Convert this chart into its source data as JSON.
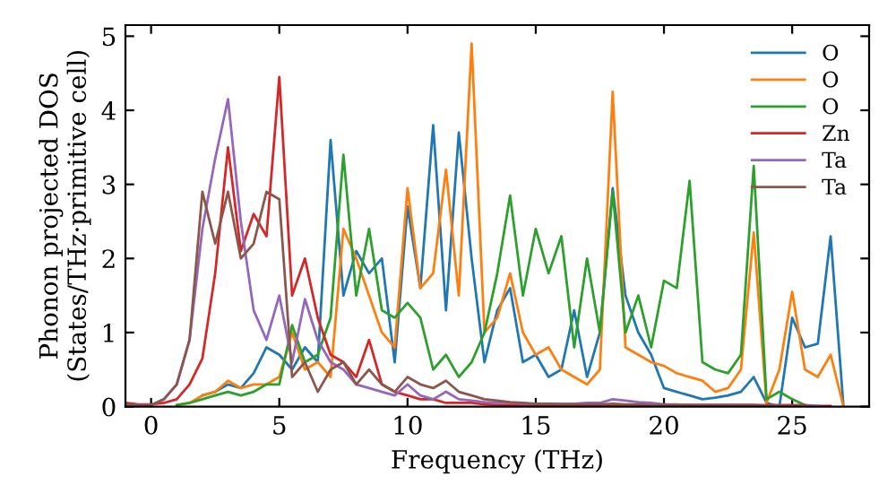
{
  "chart_data": {
    "type": "line",
    "xlabel": "Frequency (THz)",
    "ylabel": "Phonon projected DOS\n(States/THz·primitive cell)",
    "x": [
      -1,
      -0.5,
      0,
      0.5,
      1,
      1.5,
      2,
      2.5,
      3,
      3.5,
      4,
      4.5,
      5,
      5.5,
      6,
      6.5,
      7,
      7.5,
      8,
      8.5,
      9,
      9.5,
      10,
      10.5,
      11,
      11.5,
      12,
      12.5,
      13,
      13.5,
      14,
      14.5,
      15,
      15.5,
      16,
      16.5,
      17,
      17.5,
      18,
      18.5,
      19,
      19.5,
      20,
      20.5,
      21,
      21.5,
      22,
      22.5,
      23,
      23.5,
      24,
      24.5,
      25,
      25.5,
      26,
      26.5,
      27
    ],
    "series": [
      {
        "name": "O",
        "color": "#1f77b4",
        "values": [
          null,
          null,
          null,
          null,
          null,
          null,
          0.15,
          0.2,
          0.3,
          0.25,
          0.45,
          0.8,
          0.7,
          0.5,
          0.8,
          0.6,
          3.6,
          1.5,
          2.1,
          1.8,
          2.0,
          0.6,
          2.7,
          1.6,
          3.8,
          1.3,
          3.7,
          2.0,
          0.6,
          1.3,
          1.6,
          0.6,
          0.7,
          0.4,
          0.5,
          1.3,
          0.4,
          1.0,
          2.95,
          1.5,
          1.0,
          0.7,
          0.25,
          0.2,
          0.15,
          0.1,
          0.12,
          0.15,
          0.2,
          0.4,
          0.05,
          0,
          1.2,
          0.8,
          0.85,
          2.3,
          0
        ]
      },
      {
        "name": "O",
        "color": "#ff7f0e",
        "values": [
          null,
          null,
          null,
          null,
          0.02,
          0.05,
          0.15,
          0.2,
          0.35,
          0.25,
          0.3,
          0.3,
          0.4,
          1.0,
          0.5,
          0.6,
          0.4,
          2.4,
          2.0,
          1.5,
          1.0,
          0.8,
          2.95,
          1.6,
          1.8,
          3.2,
          1.5,
          4.9,
          1.0,
          1.2,
          1.8,
          1.0,
          0.7,
          0.8,
          0.5,
          0.4,
          0.3,
          0.5,
          4.25,
          0.8,
          0.7,
          0.6,
          0.55,
          0.45,
          0.4,
          0.35,
          0.2,
          0.25,
          0.5,
          2.35,
          0.05,
          0.5,
          1.55,
          0.5,
          0.4,
          0.7,
          0
        ]
      },
      {
        "name": "O",
        "color": "#2ca02c",
        "values": [
          null,
          null,
          null,
          null,
          0.02,
          0.05,
          0.1,
          0.15,
          0.2,
          0.15,
          0.2,
          0.3,
          0.3,
          1.1,
          0.6,
          0.7,
          1.2,
          3.4,
          1.5,
          2.4,
          1.3,
          1.2,
          1.4,
          1.2,
          0.5,
          0.7,
          0.4,
          0.6,
          1.0,
          1.8,
          2.85,
          1.5,
          2.4,
          1.8,
          2.3,
          0.8,
          2.0,
          1.0,
          2.9,
          1.0,
          1.5,
          0.8,
          1.7,
          1.6,
          3.05,
          0.6,
          0.5,
          0.45,
          0.7,
          3.25,
          0.1,
          0.2,
          0.1,
          0.02,
          null,
          null,
          null
        ]
      },
      {
        "name": "Zn",
        "color": "#d62728",
        "values": [
          0.05,
          0.03,
          0.03,
          0.05,
          0.1,
          0.3,
          0.65,
          1.8,
          3.5,
          2.1,
          2.6,
          2.3,
          4.45,
          1.5,
          2.0,
          1.2,
          0.7,
          0.6,
          0.4,
          0.9,
          0.3,
          0.2,
          0.15,
          0.1,
          0.1,
          0.05,
          0.05,
          0.05,
          0.03,
          0.02,
          0.02,
          0.02,
          0.02,
          0.02,
          0.02,
          0.02,
          0.02,
          0.02,
          0.02,
          0.02,
          0.02,
          0.02,
          0.02,
          0.02,
          0.02,
          0.02,
          0.02,
          0.02,
          0.02,
          0.02,
          0.02,
          0.02,
          0.02,
          0.02,
          0.01,
          0.01,
          null
        ]
      },
      {
        "name": "Ta",
        "color": "#9467bd",
        "values": [
          0.03,
          0.02,
          0.02,
          0.1,
          0.3,
          0.9,
          2.4,
          3.35,
          4.15,
          2.5,
          1.3,
          0.9,
          1.5,
          0.6,
          1.45,
          0.9,
          0.6,
          0.5,
          0.3,
          0.25,
          0.2,
          0.15,
          0.3,
          0.15,
          0.1,
          0.2,
          0.1,
          0.08,
          0.06,
          0.05,
          0.05,
          0.04,
          0.04,
          0.04,
          0.04,
          0.04,
          0.05,
          0.05,
          0.1,
          0.08,
          0.06,
          0.05,
          0.03,
          0.03,
          0.02,
          0.02,
          0.02,
          0.02,
          0.02,
          0.02,
          0.01,
          0.01,
          0.01,
          0.01,
          0.01,
          null,
          null
        ]
      },
      {
        "name": "Ta",
        "color": "#8c564b",
        "values": [
          0.03,
          0.02,
          0.02,
          0.1,
          0.3,
          0.9,
          2.9,
          2.2,
          2.9,
          2.0,
          2.2,
          2.9,
          2.8,
          0.4,
          0.6,
          0.2,
          0.5,
          0.6,
          0.3,
          0.5,
          0.3,
          0.2,
          0.4,
          0.3,
          0.25,
          0.35,
          0.2,
          0.15,
          0.1,
          0.08,
          0.06,
          0.05,
          0.04,
          0.04,
          0.03,
          0.03,
          0.03,
          0.03,
          0.04,
          0.03,
          0.03,
          0.02,
          0.02,
          0.02,
          0.02,
          0.02,
          0.02,
          0.02,
          0.02,
          0.02,
          0.01,
          0.01,
          0.01,
          0.01,
          null,
          null,
          null
        ]
      }
    ],
    "xlim": [
      -1,
      28
    ],
    "ylim": [
      0,
      5.15
    ],
    "xticks": [
      0,
      5,
      10,
      15,
      20,
      25
    ],
    "yticks": [
      0,
      1,
      2,
      3,
      4,
      5
    ],
    "legend": "top right",
    "grid": false,
    "marker": "none",
    "line_style": "solid"
  }
}
